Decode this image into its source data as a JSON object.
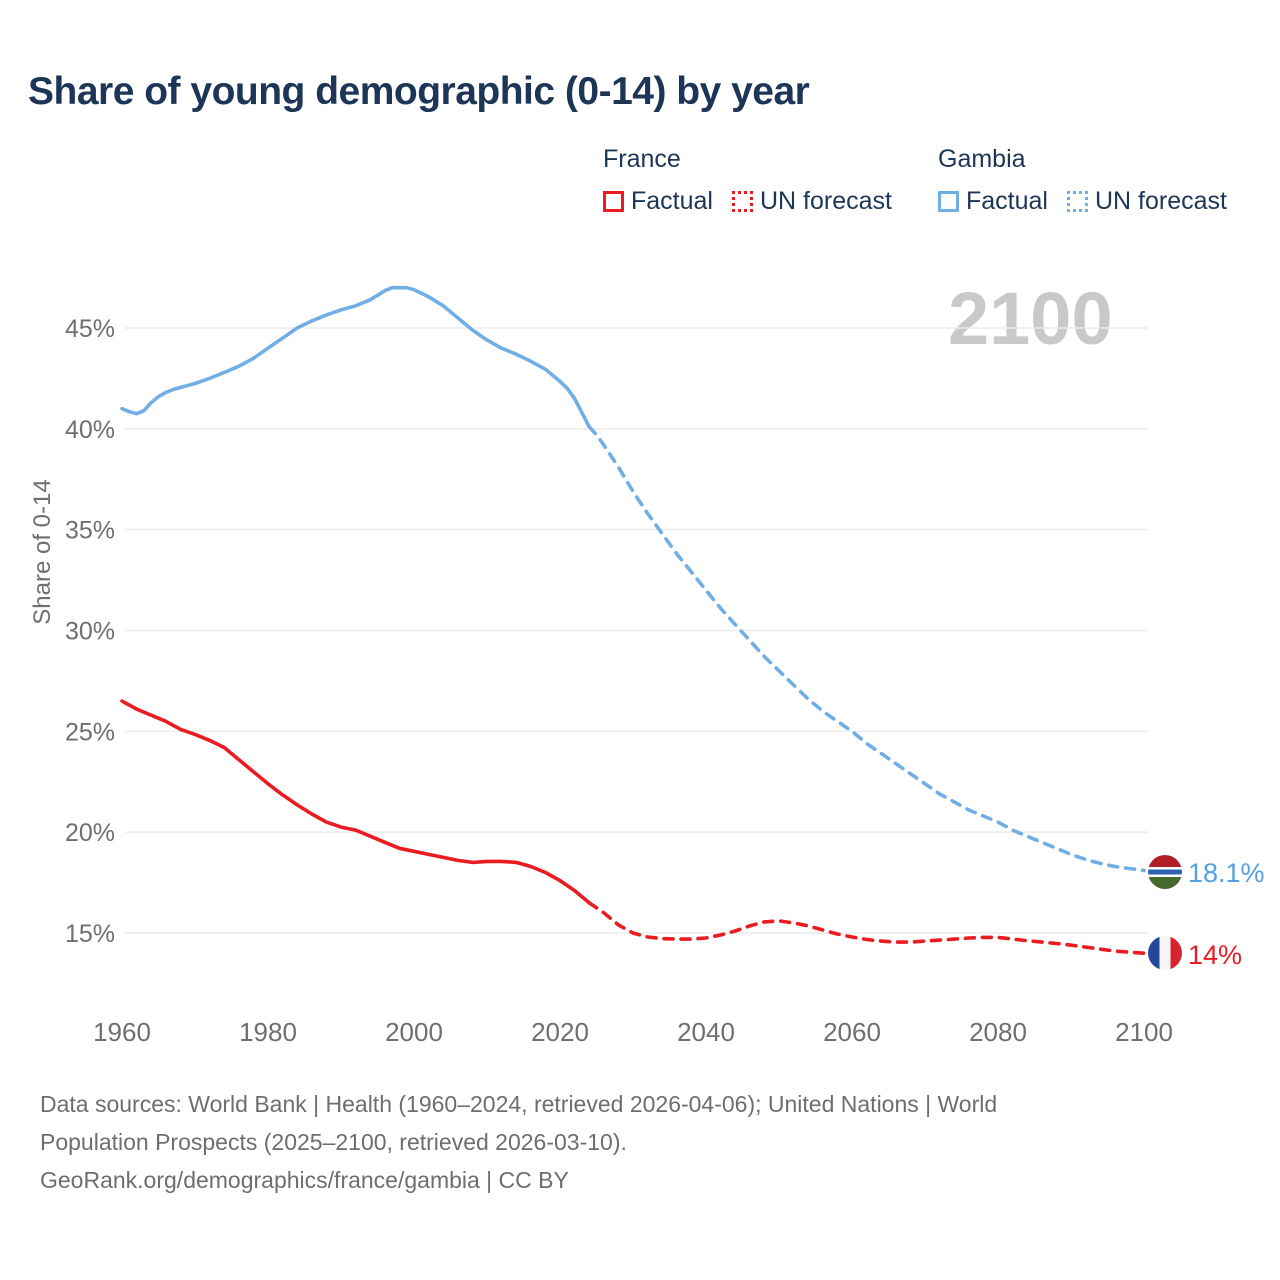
{
  "title": "Share of young demographic (0-14) by year",
  "watermark": "2100",
  "legend": {
    "france": {
      "label": "France",
      "factual": "Factual",
      "forecast": "UN forecast"
    },
    "gambia": {
      "label": "Gambia",
      "factual": "Factual",
      "forecast": "UN forecast"
    }
  },
  "end_labels": {
    "gambia": {
      "value": "18.1%",
      "flag": "gambia-flag-icon"
    },
    "france": {
      "value": "14%",
      "flag": "france-flag-icon"
    }
  },
  "footer": {
    "sources": "Data sources: World Bank | Health (1960–2024, retrieved 2026-04-06); United Nations | World Population Prospects (2025–2100, retrieved 2026-03-10).",
    "link": "GeoRank.org/demographics/france/gambia | CC BY"
  },
  "colors": {
    "title_text": "#1d3557",
    "legend_text": "#1d3557",
    "axis_text": "#6f6f6f",
    "gridline": "#ececec",
    "watermark": "#c9c9c9",
    "france_red": "#ea1c21",
    "gambia_blue": "#72aee6",
    "gambia_value_text": "#55a0e2",
    "footer_text": "#6e6e6e",
    "flag_gambia_red": "#b01e28",
    "flag_gambia_blue": "#2f63b2",
    "flag_gambia_green": "#47682c",
    "flag_france_blue": "#26459c",
    "flag_france_red": "#d7252f"
  },
  "chart_data": {
    "type": "line",
    "title": "Share of young demographic (0-14) by year",
    "xlabel": "",
    "ylabel": "Share of 0-14",
    "x_ticks": [
      1960,
      1980,
      2000,
      2020,
      2040,
      2060,
      2080,
      2100
    ],
    "y_gridlines": [
      15,
      20,
      25,
      30,
      35,
      40,
      45
    ],
    "y_tick_suffix": "%",
    "xlim": [
      1960,
      2100
    ],
    "ylim": [
      15,
      45
    ],
    "grid": "horizontal-only",
    "legend_position": "top-right",
    "series": [
      {
        "name": "Gambia Factual",
        "style": "solid",
        "color": "#72aee6",
        "points": [
          [
            1960,
            41.0
          ],
          [
            1961,
            40.85
          ],
          [
            1962,
            40.75
          ],
          [
            1963,
            40.9
          ],
          [
            1964,
            41.3
          ],
          [
            1965,
            41.6
          ],
          [
            1966,
            41.8
          ],
          [
            1967,
            41.95
          ],
          [
            1968,
            42.05
          ],
          [
            1970,
            42.25
          ],
          [
            1972,
            42.5
          ],
          [
            1974,
            42.8
          ],
          [
            1976,
            43.1
          ],
          [
            1978,
            43.5
          ],
          [
            1980,
            44.0
          ],
          [
            1982,
            44.5
          ],
          [
            1984,
            45.0
          ],
          [
            1986,
            45.35
          ],
          [
            1988,
            45.65
          ],
          [
            1990,
            45.9
          ],
          [
            1992,
            46.1
          ],
          [
            1994,
            46.4
          ],
          [
            1996,
            46.85
          ],
          [
            1997,
            47.0
          ],
          [
            1999,
            47.0
          ],
          [
            2000,
            46.9
          ],
          [
            2002,
            46.55
          ],
          [
            2004,
            46.1
          ],
          [
            2006,
            45.5
          ],
          [
            2008,
            44.9
          ],
          [
            2010,
            44.4
          ],
          [
            2012,
            44.0
          ],
          [
            2014,
            43.7
          ],
          [
            2016,
            43.35
          ],
          [
            2018,
            42.95
          ],
          [
            2020,
            42.35
          ],
          [
            2021,
            42.0
          ],
          [
            2022,
            41.5
          ],
          [
            2023,
            40.8
          ],
          [
            2024,
            40.1
          ]
        ]
      },
      {
        "name": "Gambia UN forecast",
        "style": "dashed",
        "color": "#72aee6",
        "points": [
          [
            2024,
            40.1
          ],
          [
            2025,
            39.7
          ],
          [
            2026,
            39.2
          ],
          [
            2028,
            38.1
          ],
          [
            2030,
            36.9
          ],
          [
            2032,
            35.8
          ],
          [
            2034,
            34.8
          ],
          [
            2036,
            33.8
          ],
          [
            2038,
            32.9
          ],
          [
            2040,
            32.0
          ],
          [
            2042,
            31.1
          ],
          [
            2044,
            30.3
          ],
          [
            2046,
            29.5
          ],
          [
            2048,
            28.7
          ],
          [
            2050,
            28.0
          ],
          [
            2052,
            27.3
          ],
          [
            2054,
            26.6
          ],
          [
            2056,
            26.0
          ],
          [
            2058,
            25.5
          ],
          [
            2060,
            25.0
          ],
          [
            2062,
            24.4
          ],
          [
            2064,
            23.9
          ],
          [
            2066,
            23.4
          ],
          [
            2068,
            22.9
          ],
          [
            2070,
            22.4
          ],
          [
            2072,
            21.9
          ],
          [
            2074,
            21.5
          ],
          [
            2076,
            21.1
          ],
          [
            2078,
            20.8
          ],
          [
            2080,
            20.5
          ],
          [
            2082,
            20.1
          ],
          [
            2084,
            19.8
          ],
          [
            2086,
            19.5
          ],
          [
            2088,
            19.2
          ],
          [
            2090,
            18.9
          ],
          [
            2092,
            18.65
          ],
          [
            2094,
            18.45
          ],
          [
            2096,
            18.3
          ],
          [
            2098,
            18.2
          ],
          [
            2100,
            18.1
          ]
        ]
      },
      {
        "name": "France Factual",
        "style": "solid",
        "color": "#ea1c21",
        "points": [
          [
            1960,
            26.5
          ],
          [
            1962,
            26.1
          ],
          [
            1964,
            25.8
          ],
          [
            1966,
            25.5
          ],
          [
            1968,
            25.1
          ],
          [
            1970,
            24.85
          ],
          [
            1972,
            24.55
          ],
          [
            1974,
            24.2
          ],
          [
            1976,
            23.6
          ],
          [
            1978,
            23.0
          ],
          [
            1980,
            22.4
          ],
          [
            1982,
            21.85
          ],
          [
            1984,
            21.35
          ],
          [
            1986,
            20.9
          ],
          [
            1988,
            20.5
          ],
          [
            1990,
            20.25
          ],
          [
            1992,
            20.1
          ],
          [
            1994,
            19.8
          ],
          [
            1996,
            19.5
          ],
          [
            1998,
            19.2
          ],
          [
            2000,
            19.05
          ],
          [
            2002,
            18.9
          ],
          [
            2004,
            18.75
          ],
          [
            2006,
            18.6
          ],
          [
            2008,
            18.5
          ],
          [
            2010,
            18.55
          ],
          [
            2012,
            18.55
          ],
          [
            2014,
            18.5
          ],
          [
            2016,
            18.3
          ],
          [
            2018,
            18.0
          ],
          [
            2020,
            17.6
          ],
          [
            2022,
            17.1
          ],
          [
            2024,
            16.5
          ]
        ]
      },
      {
        "name": "France UN forecast",
        "style": "dashed",
        "color": "#ea1c21",
        "points": [
          [
            2024,
            16.5
          ],
          [
            2026,
            16.0
          ],
          [
            2028,
            15.4
          ],
          [
            2030,
            15.0
          ],
          [
            2032,
            14.8
          ],
          [
            2034,
            14.72
          ],
          [
            2036,
            14.7
          ],
          [
            2038,
            14.7
          ],
          [
            2040,
            14.75
          ],
          [
            2042,
            14.9
          ],
          [
            2044,
            15.1
          ],
          [
            2046,
            15.35
          ],
          [
            2048,
            15.55
          ],
          [
            2050,
            15.6
          ],
          [
            2052,
            15.5
          ],
          [
            2054,
            15.35
          ],
          [
            2056,
            15.15
          ],
          [
            2058,
            14.95
          ],
          [
            2060,
            14.8
          ],
          [
            2062,
            14.68
          ],
          [
            2064,
            14.6
          ],
          [
            2066,
            14.55
          ],
          [
            2068,
            14.55
          ],
          [
            2070,
            14.6
          ],
          [
            2072,
            14.65
          ],
          [
            2074,
            14.7
          ],
          [
            2076,
            14.75
          ],
          [
            2078,
            14.78
          ],
          [
            2080,
            14.78
          ],
          [
            2082,
            14.7
          ],
          [
            2084,
            14.62
          ],
          [
            2086,
            14.55
          ],
          [
            2088,
            14.48
          ],
          [
            2090,
            14.4
          ],
          [
            2092,
            14.3
          ],
          [
            2094,
            14.2
          ],
          [
            2096,
            14.1
          ],
          [
            2098,
            14.05
          ],
          [
            2100,
            14.0
          ]
        ]
      }
    ],
    "end_annotations": [
      {
        "series": "Gambia UN forecast",
        "x": 2100,
        "label": "18.1%"
      },
      {
        "series": "France UN forecast",
        "x": 2100,
        "label": "14%"
      }
    ]
  }
}
